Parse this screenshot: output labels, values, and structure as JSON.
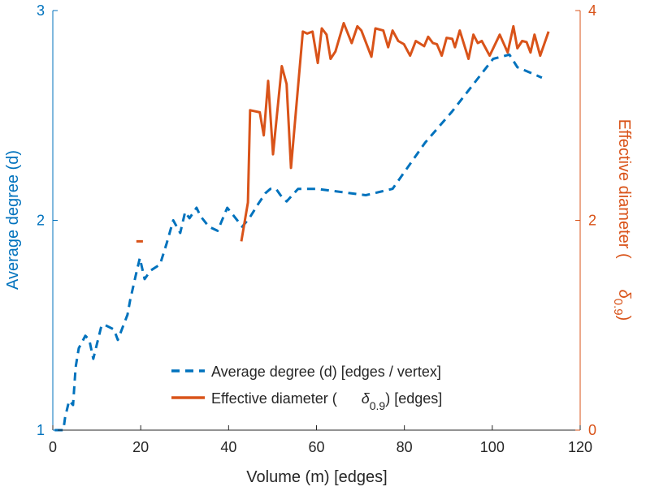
{
  "chart_data": {
    "type": "line",
    "title": "",
    "xlabel": "Volume (m) [edges]",
    "ylabel_left": "Average degree (d)",
    "ylabel_right": {
      "prefix": "Effective diameter (",
      "symbol": "δ",
      "subscript": "0.9",
      "suffix": ")"
    },
    "xlim": [
      0,
      120
    ],
    "ylim_left": [
      1,
      3
    ],
    "ylim_right": [
      0,
      4
    ],
    "x_ticks": [
      "0",
      "20",
      "40",
      "60",
      "80",
      "100",
      "120"
    ],
    "y_left_ticks": [
      "1",
      "2",
      "3"
    ],
    "y_right_ticks": [
      "0",
      "2",
      "4"
    ],
    "grid": false,
    "legend_placement": "bottom-center",
    "colors": {
      "left": "#0072BD",
      "right": "#D95319"
    },
    "series": [
      {
        "name": "Average degree (d) [edges / vertex]",
        "axis": "left",
        "style": "dashed",
        "x": [
          0.4,
          2.4,
          2.8,
          3.7,
          4.6,
          5.2,
          5.9,
          7.4,
          8.3,
          9.2,
          11.1,
          12.0,
          13.9,
          14.8,
          17.0,
          17.6,
          18.9,
          19.8,
          20.9,
          22.2,
          24.4,
          25.9,
          27.4,
          29.0,
          30.1,
          31.1,
          32.7,
          33.6,
          35.5,
          37.5,
          39.7,
          41.6,
          43.1,
          44.7,
          46.8,
          48.4,
          49.5,
          50.8,
          51.8,
          53.2,
          55.8,
          60.1,
          71.2,
          77.3,
          84.7,
          90.9,
          100.2,
          103.9,
          105.7,
          111.3
        ],
        "y": [
          1.0,
          1.0,
          1.06,
          1.14,
          1.12,
          1.3,
          1.39,
          1.45,
          1.43,
          1.34,
          1.5,
          1.5,
          1.48,
          1.43,
          1.55,
          1.62,
          1.74,
          1.82,
          1.72,
          1.76,
          1.79,
          1.89,
          2.0,
          1.94,
          2.04,
          2.01,
          2.06,
          2.02,
          1.97,
          1.95,
          2.06,
          2.01,
          1.97,
          2.01,
          2.08,
          2.13,
          2.15,
          2.15,
          2.12,
          2.09,
          2.15,
          2.15,
          2.12,
          2.15,
          2.37,
          2.52,
          2.77,
          2.79,
          2.73,
          2.68
        ]
      },
      {
        "name": "Effective diameter (δ0.9) [edges]",
        "legend": {
          "prefix": "Effective diameter (",
          "symbol": "δ",
          "subscript": "0.9",
          "suffix": ") [edges]"
        },
        "axis": "right",
        "style": "solid",
        "x": [
          19.0,
          20.5,
          21.8,
          42.9,
          44.4,
          44.9,
          47.1,
          48.0,
          49.0,
          50.1,
          52.1,
          53.2,
          54.2,
          56.9,
          57.9,
          59.1,
          60.3,
          61.2,
          62.3,
          63.2,
          64.3,
          66.2,
          68.0,
          69.3,
          70.2,
          72.5,
          73.4,
          75.2,
          76.3,
          77.3,
          78.6,
          79.9,
          81.3,
          82.6,
          84.5,
          85.4,
          86.5,
          87.4,
          88.5,
          89.6,
          90.9,
          91.5,
          92.6,
          94.6,
          95.7,
          96.7,
          97.6,
          99.4,
          101.7,
          103.5,
          104.8,
          105.7,
          106.8,
          107.8,
          108.7,
          109.6,
          110.9,
          112.8
        ],
        "y": [
          1.8,
          1.8,
          null,
          1.8,
          2.17,
          3.05,
          3.03,
          2.81,
          3.33,
          2.63,
          3.47,
          3.3,
          2.5,
          3.8,
          3.78,
          3.8,
          3.5,
          3.83,
          3.77,
          3.54,
          3.61,
          3.88,
          3.69,
          3.85,
          3.81,
          3.56,
          3.83,
          3.81,
          3.65,
          3.81,
          3.71,
          3.68,
          3.57,
          3.71,
          3.66,
          3.75,
          3.69,
          3.68,
          3.57,
          3.74,
          3.73,
          3.65,
          3.81,
          3.54,
          3.77,
          3.69,
          3.71,
          3.57,
          3.77,
          3.6,
          3.85,
          3.64,
          3.71,
          3.7,
          3.6,
          3.77,
          3.57,
          3.8
        ]
      }
    ]
  }
}
